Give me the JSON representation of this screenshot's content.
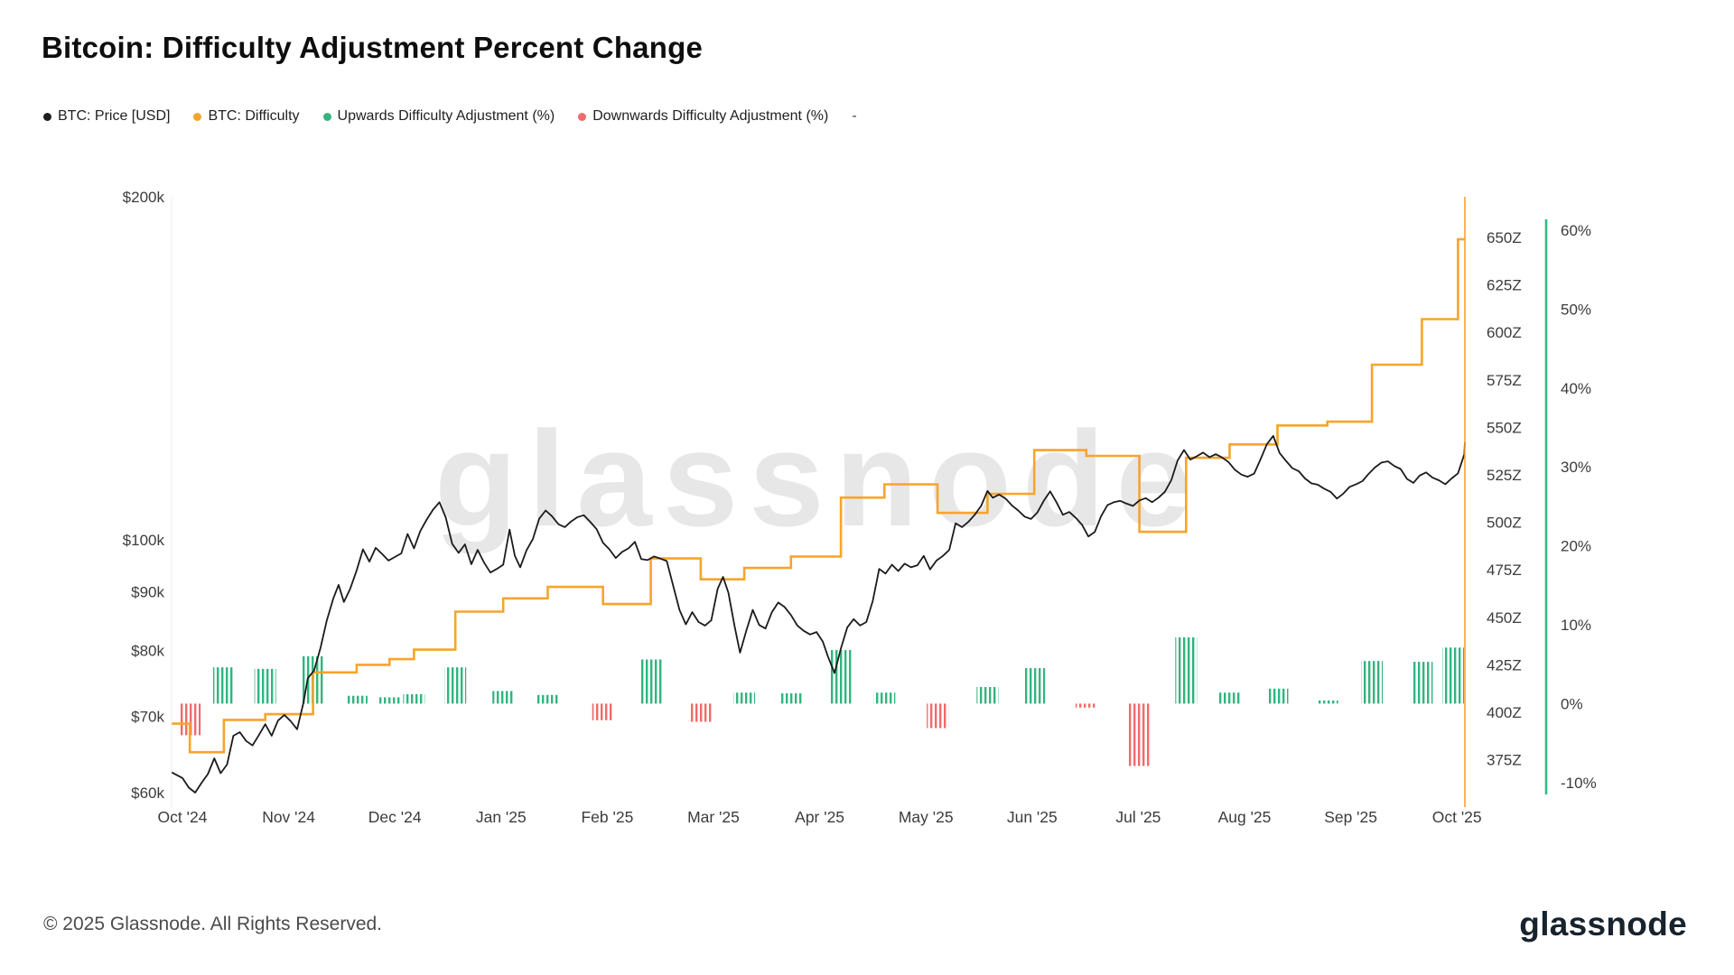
{
  "page": {
    "title": "Bitcoin: Difficulty Adjustment Percent Change",
    "watermark": "glassnode",
    "footer_copyright": "© 2025 Glassnode. All Rights Reserved.",
    "footer_logo": "glassnode"
  },
  "legend": {
    "items": [
      {
        "label": "BTC: Price [USD]",
        "color": "#1f1f1f"
      },
      {
        "label": "BTC: Difficulty",
        "color": "#f7a42b"
      },
      {
        "label": "Upwards Difficulty Adjustment (%)",
        "color": "#31b57f"
      },
      {
        "label": "Downwards Difficulty Adjustment (%)",
        "color": "#f06a6a"
      }
    ],
    "placeholder": "-"
  },
  "chart_data": {
    "type": "line",
    "title": "Bitcoin: Difficulty Adjustment Percent Change",
    "x_unit": "months_since_oct_2024",
    "x_axis": {
      "labels": [
        "Oct '24",
        "Nov '24",
        "Dec '24",
        "Jan '25",
        "Feb '25",
        "Mar '25",
        "Apr '25",
        "May '25",
        "Jun '25",
        "Jul '25",
        "Aug '25",
        "Sep '25",
        "Oct '25"
      ],
      "grid": false
    },
    "y_axes": [
      {
        "id": "price",
        "side": "left",
        "scale": "log",
        "unit": "thousand USD",
        "ticks": {
          "labels": [
            "$200k",
            "$100k",
            "$90k",
            "$80k",
            "$70k",
            "$60k"
          ],
          "values": [
            200,
            100,
            90,
            80,
            70,
            60
          ]
        },
        "range": [
          59,
          205
        ]
      },
      {
        "id": "difficulty",
        "side": "right",
        "scale": "linear",
        "unit": "Z",
        "color": "#f7a42b",
        "ticks": {
          "labels": [
            "650Z",
            "625Z",
            "600Z",
            "575Z",
            "550Z",
            "525Z",
            "500Z",
            "475Z",
            "450Z",
            "425Z",
            "400Z",
            "375Z"
          ],
          "values": [
            650,
            625,
            600,
            575,
            550,
            525,
            500,
            475,
            450,
            425,
            400,
            375
          ]
        },
        "range": [
          360,
          665
        ]
      },
      {
        "id": "adjustment",
        "side": "far_right",
        "scale": "linear",
        "unit": "%",
        "color": "#2fbd85",
        "ticks": {
          "labels": [
            "60%",
            "50%",
            "40%",
            "30%",
            "20%",
            "10%",
            "0%",
            "-10%"
          ],
          "values": [
            60,
            50,
            40,
            30,
            20,
            10,
            0,
            -10
          ]
        },
        "range": [
          -13,
          64
        ]
      }
    ],
    "series": [
      {
        "id": "price",
        "name": "BTC: Price [USD]",
        "type": "line",
        "axis": "price",
        "color": "#1b1b1d",
        "unit": "thousand USD",
        "points": [
          [
            -0.1,
            62.5
          ],
          [
            0.0,
            61.8
          ],
          [
            0.06,
            60.6
          ],
          [
            0.12,
            60.0
          ],
          [
            0.18,
            61.2
          ],
          [
            0.24,
            62.3
          ],
          [
            0.3,
            64.3
          ],
          [
            0.36,
            62.4
          ],
          [
            0.42,
            63.5
          ],
          [
            0.48,
            67.3
          ],
          [
            0.54,
            67.8
          ],
          [
            0.6,
            66.6
          ],
          [
            0.66,
            66.0
          ],
          [
            0.72,
            67.4
          ],
          [
            0.78,
            68.9
          ],
          [
            0.84,
            67.3
          ],
          [
            0.9,
            69.4
          ],
          [
            0.96,
            70.2
          ],
          [
            1.02,
            69.3
          ],
          [
            1.08,
            68.2
          ],
          [
            1.14,
            72.0
          ],
          [
            1.18,
            75.6
          ],
          [
            1.24,
            76.8
          ],
          [
            1.3,
            80.4
          ],
          [
            1.36,
            85.0
          ],
          [
            1.42,
            88.8
          ],
          [
            1.47,
            91.3
          ],
          [
            1.52,
            88.2
          ],
          [
            1.58,
            90.6
          ],
          [
            1.64,
            94.0
          ],
          [
            1.7,
            98.1
          ],
          [
            1.76,
            95.7
          ],
          [
            1.82,
            98.4
          ],
          [
            1.88,
            97.2
          ],
          [
            1.94,
            95.9
          ],
          [
            2.0,
            96.6
          ],
          [
            2.06,
            97.3
          ],
          [
            2.12,
            101.2
          ],
          [
            2.18,
            98.3
          ],
          [
            2.24,
            101.8
          ],
          [
            2.3,
            104.2
          ],
          [
            2.36,
            106.3
          ],
          [
            2.42,
            107.9
          ],
          [
            2.48,
            104.6
          ],
          [
            2.54,
            99.2
          ],
          [
            2.6,
            97.4
          ],
          [
            2.66,
            99.1
          ],
          [
            2.72,
            95.2
          ],
          [
            2.78,
            98.0
          ],
          [
            2.84,
            95.5
          ],
          [
            2.9,
            93.6
          ],
          [
            2.96,
            94.3
          ],
          [
            3.02,
            95.1
          ],
          [
            3.08,
            102.1
          ],
          [
            3.13,
            96.8
          ],
          [
            3.18,
            94.6
          ],
          [
            3.24,
            97.9
          ],
          [
            3.3,
            100.2
          ],
          [
            3.36,
            104.4
          ],
          [
            3.42,
            106.1
          ],
          [
            3.48,
            104.9
          ],
          [
            3.54,
            103.2
          ],
          [
            3.6,
            102.6
          ],
          [
            3.66,
            103.8
          ],
          [
            3.72,
            104.7
          ],
          [
            3.78,
            105.1
          ],
          [
            3.84,
            103.7
          ],
          [
            3.9,
            102.2
          ],
          [
            3.96,
            99.4
          ],
          [
            4.02,
            98.1
          ],
          [
            4.08,
            96.4
          ],
          [
            4.14,
            97.6
          ],
          [
            4.2,
            98.3
          ],
          [
            4.26,
            99.6
          ],
          [
            4.32,
            96.2
          ],
          [
            4.38,
            96.0
          ],
          [
            4.44,
            96.7
          ],
          [
            4.5,
            96.3
          ],
          [
            4.56,
            95.8
          ],
          [
            4.62,
            91.2
          ],
          [
            4.68,
            86.8
          ],
          [
            4.74,
            84.3
          ],
          [
            4.8,
            86.4
          ],
          [
            4.86,
            84.7
          ],
          [
            4.92,
            84.1
          ],
          [
            4.98,
            85.0
          ],
          [
            5.04,
            90.6
          ],
          [
            5.09,
            92.8
          ],
          [
            5.14,
            89.9
          ],
          [
            5.2,
            83.9
          ],
          [
            5.25,
            79.6
          ],
          [
            5.31,
            83.3
          ],
          [
            5.37,
            86.8
          ],
          [
            5.43,
            84.2
          ],
          [
            5.49,
            83.6
          ],
          [
            5.55,
            86.4
          ],
          [
            5.61,
            88.1
          ],
          [
            5.67,
            87.3
          ],
          [
            5.73,
            85.9
          ],
          [
            5.79,
            84.1
          ],
          [
            5.85,
            83.2
          ],
          [
            5.91,
            82.6
          ],
          [
            5.97,
            83.0
          ],
          [
            6.03,
            81.4
          ],
          [
            6.08,
            78.9
          ],
          [
            6.14,
            76.4
          ],
          [
            6.2,
            80.3
          ],
          [
            6.26,
            83.8
          ],
          [
            6.32,
            85.2
          ],
          [
            6.38,
            84.1
          ],
          [
            6.44,
            84.7
          ],
          [
            6.5,
            88.4
          ],
          [
            6.56,
            94.3
          ],
          [
            6.62,
            93.4
          ],
          [
            6.68,
            95.1
          ],
          [
            6.74,
            93.9
          ],
          [
            6.8,
            95.3
          ],
          [
            6.86,
            94.6
          ],
          [
            6.92,
            95.0
          ],
          [
            6.98,
            96.8
          ],
          [
            7.04,
            94.2
          ],
          [
            7.1,
            95.9
          ],
          [
            7.16,
            96.8
          ],
          [
            7.22,
            98.0
          ],
          [
            7.28,
            103.4
          ],
          [
            7.34,
            102.6
          ],
          [
            7.4,
            103.7
          ],
          [
            7.46,
            105.2
          ],
          [
            7.52,
            107.1
          ],
          [
            7.58,
            110.4
          ],
          [
            7.63,
            108.9
          ],
          [
            7.69,
            109.6
          ],
          [
            7.75,
            108.7
          ],
          [
            7.81,
            107.2
          ],
          [
            7.87,
            106.1
          ],
          [
            7.93,
            104.8
          ],
          [
            7.99,
            104.3
          ],
          [
            8.05,
            105.7
          ],
          [
            8.11,
            108.2
          ],
          [
            8.17,
            110.3
          ],
          [
            8.23,
            107.9
          ],
          [
            8.29,
            105.2
          ],
          [
            8.35,
            105.8
          ],
          [
            8.41,
            104.6
          ],
          [
            8.47,
            103.1
          ],
          [
            8.53,
            100.7
          ],
          [
            8.59,
            101.6
          ],
          [
            8.65,
            104.9
          ],
          [
            8.71,
            107.3
          ],
          [
            8.77,
            107.9
          ],
          [
            8.83,
            108.2
          ],
          [
            8.89,
            107.6
          ],
          [
            8.95,
            107.1
          ],
          [
            9.01,
            108.3
          ],
          [
            9.07,
            108.8
          ],
          [
            9.13,
            107.9
          ],
          [
            9.19,
            108.9
          ],
          [
            9.25,
            110.2
          ],
          [
            9.31,
            112.8
          ],
          [
            9.37,
            117.4
          ],
          [
            9.43,
            119.9
          ],
          [
            9.49,
            117.6
          ],
          [
            9.55,
            118.4
          ],
          [
            9.61,
            119.3
          ],
          [
            9.67,
            118.2
          ],
          [
            9.73,
            118.9
          ],
          [
            9.79,
            118.1
          ],
          [
            9.85,
            117.0
          ],
          [
            9.91,
            115.2
          ],
          [
            9.97,
            114.1
          ],
          [
            10.03,
            113.6
          ],
          [
            10.09,
            114.3
          ],
          [
            10.15,
            117.6
          ],
          [
            10.21,
            121.3
          ],
          [
            10.27,
            123.4
          ],
          [
            10.33,
            119.2
          ],
          [
            10.39,
            117.3
          ],
          [
            10.45,
            115.6
          ],
          [
            10.51,
            114.9
          ],
          [
            10.57,
            113.2
          ],
          [
            10.63,
            112.1
          ],
          [
            10.69,
            111.8
          ],
          [
            10.75,
            110.9
          ],
          [
            10.81,
            110.2
          ],
          [
            10.87,
            108.7
          ],
          [
            10.93,
            109.8
          ],
          [
            10.99,
            111.3
          ],
          [
            11.05,
            111.9
          ],
          [
            11.11,
            112.6
          ],
          [
            11.17,
            114.3
          ],
          [
            11.23,
            115.8
          ],
          [
            11.29,
            116.9
          ],
          [
            11.35,
            117.2
          ],
          [
            11.41,
            116.1
          ],
          [
            11.47,
            115.4
          ],
          [
            11.53,
            113.1
          ],
          [
            11.59,
            112.2
          ],
          [
            11.65,
            113.9
          ],
          [
            11.71,
            114.6
          ],
          [
            11.77,
            113.4
          ],
          [
            11.83,
            112.8
          ],
          [
            11.89,
            111.9
          ],
          [
            11.95,
            113.2
          ],
          [
            12.01,
            114.4
          ],
          [
            12.07,
            118.9
          ],
          [
            12.1,
            121.8
          ]
        ]
      },
      {
        "id": "difficulty",
        "name": "BTC: Difficulty",
        "type": "step",
        "axis": "difficulty",
        "color": "#f7a42b",
        "unit": "Z",
        "points": [
          [
            -0.1,
            394
          ],
          [
            0.07,
            379
          ],
          [
            0.39,
            396
          ],
          [
            0.78,
            399
          ],
          [
            1.23,
            421
          ],
          [
            1.64,
            425
          ],
          [
            1.95,
            428
          ],
          [
            2.18,
            433
          ],
          [
            2.57,
            453
          ],
          [
            3.02,
            460
          ],
          [
            3.44,
            466
          ],
          [
            3.96,
            457
          ],
          [
            4.41,
            481
          ],
          [
            4.88,
            470
          ],
          [
            5.29,
            476
          ],
          [
            5.73,
            482
          ],
          [
            6.2,
            513
          ],
          [
            6.61,
            520
          ],
          [
            7.11,
            505
          ],
          [
            7.58,
            515
          ],
          [
            8.02,
            538
          ],
          [
            8.51,
            535
          ],
          [
            9.01,
            495
          ],
          [
            9.45,
            534
          ],
          [
            9.86,
            541
          ],
          [
            10.31,
            551
          ],
          [
            10.78,
            553
          ],
          [
            11.2,
            583
          ],
          [
            11.67,
            607
          ],
          [
            12.01,
            649
          ]
        ]
      },
      {
        "id": "up_adjust",
        "name": "Upwards Difficulty Adjustment (%)",
        "type": "bar",
        "axis": "adjustment",
        "color": "#31b57f",
        "unit": "%",
        "points": [
          [
            0.39,
            4.6
          ],
          [
            0.78,
            4.4
          ],
          [
            1.23,
            6.0
          ],
          [
            1.64,
            1.0
          ],
          [
            1.95,
            0.8
          ],
          [
            2.18,
            1.2
          ],
          [
            2.57,
            4.6
          ],
          [
            3.02,
            1.6
          ],
          [
            3.44,
            1.1
          ],
          [
            4.41,
            5.6
          ],
          [
            5.29,
            1.4
          ],
          [
            5.73,
            1.3
          ],
          [
            6.2,
            6.8
          ],
          [
            6.61,
            1.4
          ],
          [
            7.58,
            2.1
          ],
          [
            8.02,
            4.5
          ],
          [
            9.45,
            8.4
          ],
          [
            9.86,
            1.4
          ],
          [
            10.31,
            1.9
          ],
          [
            10.78,
            0.4
          ],
          [
            11.2,
            5.4
          ],
          [
            11.67,
            5.3
          ],
          [
            12.01,
            7.1
          ]
        ]
      },
      {
        "id": "down_adjust",
        "name": "Downwards Difficulty Adjustment (%)",
        "type": "bar",
        "axis": "adjustment",
        "color": "#f06a6a",
        "unit": "%",
        "points": [
          [
            0.07,
            -4.0
          ],
          [
            3.96,
            -2.1
          ],
          [
            4.88,
            -2.3
          ],
          [
            7.11,
            -3.1
          ],
          [
            8.51,
            -0.5
          ],
          [
            9.01,
            -7.9
          ]
        ]
      }
    ]
  }
}
